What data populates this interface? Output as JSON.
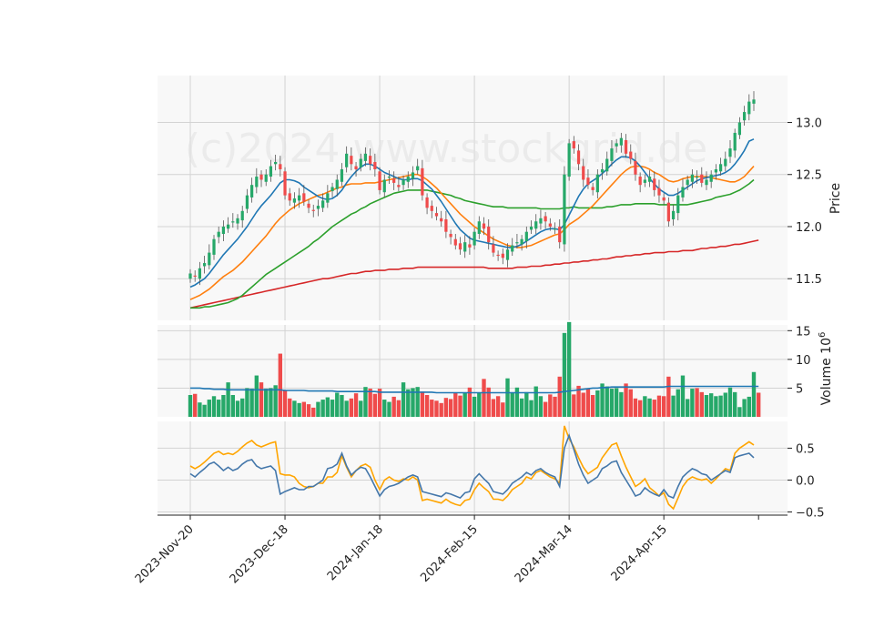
{
  "watermark": "(c)2024 www.stockgrid.de",
  "colors": {
    "up": "#26a869",
    "down": "#ef4b4b",
    "ma_short": "#1f77b4",
    "ma_mid": "#ff7f0e",
    "ma_long": "#2ca02c",
    "ma_200": "#d62728",
    "osc_a": "#4477aa",
    "osc_b": "#ffa500",
    "panel_bg": "#f8f8f8",
    "grid": "#d3d3d3"
  },
  "chart_data": {
    "type": "candlestick",
    "x_tick_labels": [
      "2023-Nov-20",
      "2023-Dec-18",
      "2024-Jan-18",
      "2024-Feb-15",
      "2024-Mar-14",
      "2024-Apr-15"
    ],
    "x_tick_index": [
      0,
      20,
      40,
      60,
      80,
      100
    ],
    "price_panel": {
      "ylabel": "Price",
      "yticks": [
        11.5,
        12.0,
        12.5,
        13.0
      ],
      "ylim": [
        11.1,
        13.45
      ],
      "close": [
        11.55,
        11.52,
        11.6,
        11.65,
        11.75,
        11.88,
        11.95,
        12.0,
        12.02,
        12.05,
        12.08,
        12.15,
        12.3,
        12.4,
        12.48,
        12.45,
        12.5,
        12.58,
        12.62,
        12.55,
        12.3,
        12.25,
        12.27,
        12.3,
        12.24,
        12.18,
        12.15,
        12.2,
        12.25,
        12.32,
        12.38,
        12.45,
        12.55,
        12.7,
        12.6,
        12.55,
        12.65,
        12.7,
        12.6,
        12.55,
        12.35,
        12.45,
        12.48,
        12.42,
        12.38,
        12.45,
        12.48,
        12.52,
        12.58,
        12.3,
        12.18,
        12.15,
        12.1,
        12.05,
        11.95,
        11.9,
        11.82,
        11.78,
        11.85,
        11.8,
        11.95,
        12.05,
        11.98,
        11.85,
        11.75,
        11.72,
        11.7,
        11.78,
        11.82,
        11.85,
        11.88,
        11.95,
        12.0,
        12.05,
        12.08,
        12.05,
        12.0,
        11.98,
        11.85,
        12.5,
        12.8,
        12.75,
        12.6,
        12.45,
        12.4,
        12.35,
        12.5,
        12.55,
        12.65,
        12.75,
        12.8,
        12.85,
        12.7,
        12.65,
        12.5,
        12.4,
        12.45,
        12.48,
        12.35,
        12.3,
        12.25,
        12.05,
        12.15,
        12.3,
        12.38,
        12.45,
        12.5,
        12.48,
        12.42,
        12.45,
        12.5,
        12.55,
        12.6,
        12.65,
        12.75,
        12.9,
        13.0,
        13.1,
        13.2,
        13.22
      ],
      "ma_short": [
        11.42,
        11.44,
        11.47,
        11.5,
        11.55,
        11.61,
        11.67,
        11.73,
        11.78,
        11.83,
        11.88,
        11.94,
        12.0,
        12.07,
        12.14,
        12.2,
        12.25,
        12.3,
        12.36,
        12.42,
        12.45,
        12.45,
        12.44,
        12.42,
        12.38,
        12.35,
        12.32,
        12.29,
        12.27,
        12.26,
        12.27,
        12.3,
        12.35,
        12.42,
        12.48,
        12.53,
        12.57,
        12.6,
        12.6,
        12.58,
        12.55,
        12.52,
        12.5,
        12.48,
        12.46,
        12.45,
        12.45,
        12.46,
        12.46,
        12.44,
        12.4,
        12.36,
        12.3,
        12.24,
        12.17,
        12.1,
        12.03,
        11.97,
        11.93,
        11.89,
        11.87,
        11.86,
        11.85,
        11.84,
        11.83,
        11.82,
        11.81,
        11.8,
        11.8,
        11.81,
        11.83,
        11.86,
        11.89,
        11.92,
        11.95,
        11.97,
        11.98,
        11.98,
        11.97,
        12.02,
        12.11,
        12.2,
        12.29,
        12.36,
        12.41,
        12.44,
        12.47,
        12.51,
        12.55,
        12.6,
        12.64,
        12.67,
        12.67,
        12.66,
        12.63,
        12.58,
        12.52,
        12.46,
        12.41,
        12.36,
        12.33,
        12.3,
        12.3,
        12.32,
        12.35,
        12.38,
        12.41,
        12.44,
        12.46,
        12.47,
        12.48,
        12.49,
        12.5,
        12.52,
        12.55,
        12.6,
        12.66,
        12.73,
        12.82,
        12.84
      ],
      "ma_mid": [
        11.3,
        11.32,
        11.34,
        11.37,
        11.4,
        11.44,
        11.48,
        11.52,
        11.55,
        11.58,
        11.62,
        11.66,
        11.71,
        11.76,
        11.81,
        11.86,
        11.91,
        11.97,
        12.03,
        12.08,
        12.12,
        12.16,
        12.19,
        12.22,
        12.24,
        12.26,
        12.28,
        12.3,
        12.31,
        12.33,
        12.35,
        12.37,
        12.38,
        12.4,
        12.41,
        12.41,
        12.41,
        12.42,
        12.42,
        12.42,
        12.43,
        12.44,
        12.45,
        12.46,
        12.47,
        12.48,
        12.49,
        12.5,
        12.5,
        12.48,
        12.45,
        12.41,
        12.37,
        12.32,
        12.27,
        12.22,
        12.17,
        12.12,
        12.08,
        12.04,
        12.0,
        11.97,
        11.94,
        11.91,
        11.88,
        11.86,
        11.84,
        11.82,
        11.81,
        11.8,
        11.8,
        11.81,
        11.82,
        11.84,
        11.86,
        11.88,
        11.9,
        11.92,
        11.93,
        11.97,
        12.02,
        12.05,
        12.08,
        12.12,
        12.16,
        12.2,
        12.25,
        12.3,
        12.35,
        12.4,
        12.45,
        12.5,
        12.54,
        12.57,
        12.58,
        12.58,
        12.57,
        12.55,
        12.52,
        12.5,
        12.47,
        12.44,
        12.43,
        12.44,
        12.46,
        12.47,
        12.48,
        12.48,
        12.48,
        12.48,
        12.47,
        12.46,
        12.45,
        12.44,
        12.43,
        12.43,
        12.45,
        12.48,
        12.53,
        12.58
      ],
      "ma_long": [
        11.22,
        11.22,
        11.22,
        11.23,
        11.23,
        11.24,
        11.25,
        11.26,
        11.27,
        11.29,
        11.31,
        11.34,
        11.38,
        11.42,
        11.46,
        11.5,
        11.54,
        11.57,
        11.6,
        11.63,
        11.66,
        11.69,
        11.72,
        11.75,
        11.78,
        11.81,
        11.85,
        11.88,
        11.92,
        11.96,
        12.0,
        12.03,
        12.06,
        12.09,
        12.12,
        12.14,
        12.17,
        12.19,
        12.22,
        12.24,
        12.26,
        12.28,
        12.3,
        12.32,
        12.33,
        12.34,
        12.35,
        12.35,
        12.35,
        12.35,
        12.35,
        12.34,
        12.33,
        12.32,
        12.31,
        12.3,
        12.28,
        12.27,
        12.25,
        12.24,
        12.23,
        12.22,
        12.21,
        12.2,
        12.19,
        12.19,
        12.19,
        12.18,
        12.18,
        12.18,
        12.18,
        12.18,
        12.18,
        12.18,
        12.17,
        12.17,
        12.17,
        12.17,
        12.17,
        12.18,
        12.18,
        12.19,
        12.18,
        12.18,
        12.18,
        12.18,
        12.18,
        12.18,
        12.19,
        12.19,
        12.2,
        12.21,
        12.21,
        12.21,
        12.22,
        12.22,
        12.22,
        12.22,
        12.22,
        12.21,
        12.21,
        12.21,
        12.21,
        12.21,
        12.21,
        12.21,
        12.22,
        12.23,
        12.24,
        12.25,
        12.26,
        12.28,
        12.29,
        12.3,
        12.31,
        12.33,
        12.35,
        12.38,
        12.41,
        12.45
      ],
      "ma_200": [
        11.22,
        11.23,
        11.24,
        11.25,
        11.26,
        11.27,
        11.28,
        11.29,
        11.3,
        11.31,
        11.32,
        11.33,
        11.34,
        11.35,
        11.36,
        11.37,
        11.38,
        11.39,
        11.4,
        11.41,
        11.42,
        11.43,
        11.44,
        11.45,
        11.46,
        11.47,
        11.48,
        11.49,
        11.5,
        11.5,
        11.51,
        11.52,
        11.53,
        11.54,
        11.55,
        11.55,
        11.56,
        11.57,
        11.57,
        11.58,
        11.58,
        11.58,
        11.59,
        11.59,
        11.59,
        11.6,
        11.6,
        11.6,
        11.61,
        11.61,
        11.61,
        11.61,
        11.61,
        11.61,
        11.61,
        11.61,
        11.61,
        11.61,
        11.61,
        11.61,
        11.61,
        11.61,
        11.61,
        11.6,
        11.6,
        11.6,
        11.6,
        11.6,
        11.6,
        11.61,
        11.61,
        11.61,
        11.62,
        11.62,
        11.62,
        11.63,
        11.63,
        11.64,
        11.64,
        11.65,
        11.65,
        11.66,
        11.66,
        11.67,
        11.67,
        11.68,
        11.68,
        11.69,
        11.69,
        11.7,
        11.71,
        11.71,
        11.72,
        11.72,
        11.73,
        11.73,
        11.74,
        11.74,
        11.75,
        11.75,
        11.75,
        11.76,
        11.76,
        11.76,
        11.77,
        11.77,
        11.77,
        11.78,
        11.79,
        11.79,
        11.8,
        11.8,
        11.81,
        11.81,
        11.82,
        11.83,
        11.83,
        11.84,
        11.85,
        11.86,
        11.87
      ]
    },
    "volume_panel": {
      "ylabel": "Volume  10^6",
      "yticks": [
        5,
        10,
        15
      ],
      "ylim": [
        0,
        16
      ],
      "volume": [
        3.8,
        4.0,
        2.5,
        2.1,
        3.0,
        3.6,
        3.0,
        3.8,
        6.0,
        3.8,
        2.8,
        3.2,
        5.0,
        4.9,
        7.2,
        6.0,
        4.9,
        5.0,
        5.5,
        11.0,
        4.6,
        3.2,
        2.8,
        2.4,
        2.6,
        2.2,
        1.6,
        2.6,
        3.0,
        3.4,
        3.0,
        4.2,
        3.8,
        2.8,
        3.2,
        4.1,
        2.8,
        5.2,
        4.9,
        4.0,
        4.9,
        3.0,
        2.6,
        3.5,
        2.9,
        6.0,
        4.8,
        5.0,
        5.2,
        4.4,
        3.8,
        3.0,
        2.8,
        2.4,
        3.3,
        3.1,
        4.2,
        3.7,
        4.2,
        5.1,
        3.5,
        4.2,
        6.6,
        5.1,
        3.1,
        3.6,
        2.5,
        6.7,
        4.2,
        5.1,
        3.2,
        4.3,
        2.9,
        5.3,
        3.6,
        2.6,
        3.9,
        3.5,
        7.0,
        14.6,
        16.5,
        3.9,
        5.4,
        4.2,
        4.9,
        3.8,
        4.6,
        5.8,
        5.3,
        4.9,
        5.0,
        4.3,
        5.8,
        4.8,
        3.2,
        2.9,
        3.6,
        3.2,
        3.0,
        3.7,
        3.6,
        7.0,
        3.7,
        4.8,
        7.2,
        3.1,
        4.9,
        5.0,
        4.3,
        3.8,
        4.1,
        3.6,
        3.7,
        4.2,
        5.1,
        4.3,
        1.7,
        3.1,
        3.5,
        7.8,
        4.2
      ],
      "volume_ma": [
        5.0,
        5.0,
        5.0,
        4.9,
        4.9,
        4.8,
        4.8,
        4.8,
        4.7,
        4.7,
        4.7,
        4.7,
        4.7,
        4.7,
        4.7,
        4.7,
        4.7,
        4.7,
        4.7,
        4.7,
        4.6,
        4.6,
        4.6,
        4.6,
        4.6,
        4.5,
        4.5,
        4.5,
        4.5,
        4.5,
        4.5,
        4.4,
        4.4,
        4.4,
        4.4,
        4.4,
        4.4,
        4.4,
        4.4,
        4.4,
        4.3,
        4.3,
        4.3,
        4.3,
        4.3,
        4.3,
        4.3,
        4.3,
        4.3,
        4.3,
        4.3,
        4.3,
        4.2,
        4.2,
        4.2,
        4.2,
        4.2,
        4.2,
        4.2,
        4.2,
        4.2,
        4.2,
        4.2,
        4.2,
        4.2,
        4.2,
        4.2,
        4.2,
        4.2,
        4.2,
        4.2,
        4.2,
        4.2,
        4.2,
        4.2,
        4.2,
        4.2,
        4.2,
        4.3,
        4.4,
        4.5,
        4.6,
        4.7,
        4.8,
        4.9,
        5.0,
        5.0,
        5.1,
        5.1,
        5.2,
        5.2,
        5.2,
        5.2,
        5.2,
        5.2,
        5.2,
        5.2,
        5.2,
        5.2,
        5.2,
        5.2,
        5.3,
        5.3,
        5.3,
        5.3,
        5.3,
        5.3,
        5.3,
        5.3,
        5.3,
        5.3,
        5.3,
        5.3,
        5.3,
        5.3,
        5.3,
        5.3,
        5.3,
        5.3,
        5.3,
        5.3
      ]
    },
    "oscillator_panel": {
      "yticks": [
        -0.5,
        0.0,
        0.5
      ],
      "ylim": [
        -0.55,
        0.92
      ],
      "line_a": [
        0.1,
        0.05,
        0.12,
        0.18,
        0.25,
        0.28,
        0.22,
        0.15,
        0.2,
        0.15,
        0.18,
        0.25,
        0.3,
        0.32,
        0.22,
        0.18,
        0.2,
        0.22,
        0.15,
        -0.22,
        -0.18,
        -0.15,
        -0.12,
        -0.15,
        -0.15,
        -0.1,
        -0.1,
        -0.05,
        0.0,
        0.18,
        0.2,
        0.25,
        0.42,
        0.22,
        0.08,
        0.15,
        0.2,
        0.18,
        0.05,
        -0.1,
        -0.25,
        -0.15,
        -0.1,
        -0.08,
        -0.05,
        0.0,
        0.05,
        0.08,
        0.05,
        -0.18,
        -0.2,
        -0.22,
        -0.24,
        -0.26,
        -0.2,
        -0.22,
        -0.25,
        -0.28,
        -0.2,
        -0.18,
        0.02,
        0.1,
        0.02,
        -0.05,
        -0.18,
        -0.2,
        -0.22,
        -0.15,
        -0.05,
        0.0,
        0.05,
        0.12,
        0.08,
        0.15,
        0.18,
        0.12,
        0.08,
        0.05,
        -0.1,
        0.5,
        0.7,
        0.48,
        0.25,
        0.08,
        -0.05,
        0.0,
        0.05,
        0.18,
        0.22,
        0.28,
        0.3,
        0.12,
        0.0,
        -0.12,
        -0.25,
        -0.22,
        -0.12,
        -0.18,
        -0.22,
        -0.25,
        -0.15,
        -0.25,
        -0.28,
        -0.1,
        0.05,
        0.12,
        0.18,
        0.15,
        0.1,
        0.08,
        0.0,
        0.05,
        0.1,
        0.15,
        0.12,
        0.35,
        0.38,
        0.4,
        0.42,
        0.35
      ],
      "line_b": [
        0.22,
        0.18,
        0.22,
        0.28,
        0.35,
        0.42,
        0.45,
        0.4,
        0.42,
        0.4,
        0.45,
        0.52,
        0.58,
        0.62,
        0.55,
        0.52,
        0.55,
        0.58,
        0.6,
        0.1,
        0.08,
        0.08,
        0.05,
        -0.05,
        -0.1,
        -0.12,
        -0.1,
        -0.05,
        -0.05,
        0.05,
        0.05,
        0.12,
        0.38,
        0.2,
        0.05,
        0.15,
        0.22,
        0.25,
        0.2,
        0.0,
        -0.15,
        0.0,
        0.05,
        0.0,
        -0.02,
        0.02,
        0.0,
        0.05,
        0.0,
        -0.32,
        -0.3,
        -0.32,
        -0.34,
        -0.36,
        -0.3,
        -0.35,
        -0.38,
        -0.4,
        -0.32,
        -0.3,
        -0.15,
        -0.05,
        -0.12,
        -0.18,
        -0.3,
        -0.3,
        -0.32,
        -0.25,
        -0.15,
        -0.1,
        -0.05,
        0.05,
        0.02,
        0.12,
        0.15,
        0.1,
        0.05,
        0.02,
        -0.05,
        0.85,
        0.65,
        0.52,
        0.35,
        0.2,
        0.1,
        0.15,
        0.2,
        0.35,
        0.45,
        0.55,
        0.58,
        0.38,
        0.2,
        0.05,
        -0.1,
        -0.05,
        0.02,
        -0.12,
        -0.18,
        -0.25,
        -0.2,
        -0.38,
        -0.45,
        -0.28,
        -0.1,
        0.0,
        0.05,
        0.02,
        0.0,
        0.02,
        -0.05,
        0.02,
        0.1,
        0.18,
        0.15,
        0.42,
        0.5,
        0.55,
        0.6,
        0.55
      ]
    }
  }
}
